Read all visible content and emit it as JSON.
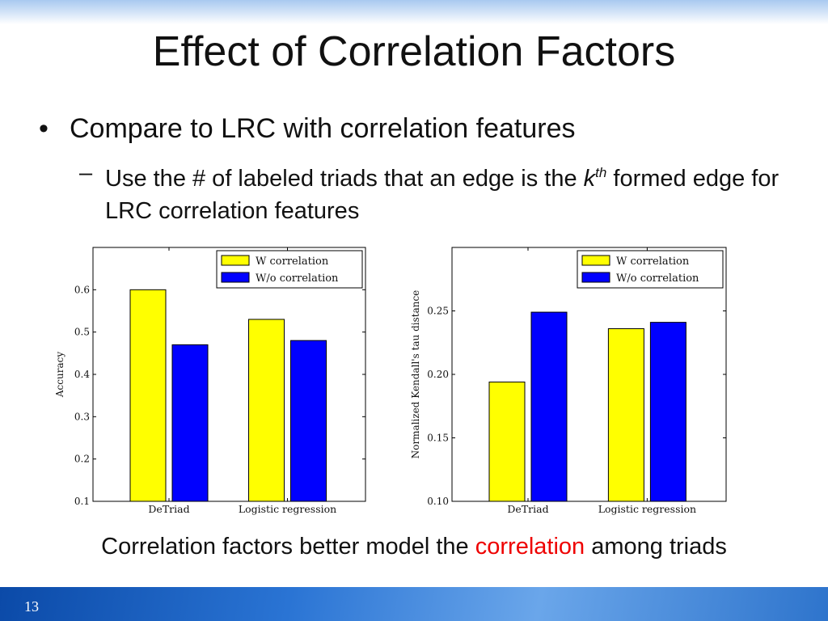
{
  "slide": {
    "title": "Effect of Correlation Factors",
    "bullet_symbol": "•",
    "bullet": "Compare to LRC with correlation features",
    "sub_dash": "–",
    "sub_bullet_pre": "Use the # of labeled triads that an edge is the ",
    "sub_bullet_k": "k",
    "sub_bullet_sup": "th",
    "sub_bullet_post": " formed edge for LRC correlation features",
    "conclusion_pre": "Correlation factors better model the ",
    "conclusion_highlight": "correlation",
    "conclusion_post": " among triads",
    "page_number": "13"
  },
  "colors": {
    "w_correlation": "#ffff00",
    "wo_correlation": "#0000ff",
    "highlight": "#ee0000"
  },
  "chart_data": [
    {
      "type": "bar",
      "title": "",
      "xlabel": "",
      "ylabel": "Accuracy",
      "categories": [
        "DeTriad",
        "Logistic regression"
      ],
      "series": [
        {
          "name": "W correlation",
          "values": [
            0.6,
            0.53
          ]
        },
        {
          "name": "W/o correlation",
          "values": [
            0.47,
            0.48
          ]
        }
      ],
      "ylim": [
        0.1,
        0.7
      ],
      "yticks": [
        0.1,
        0.2,
        0.3,
        0.4,
        0.5,
        0.6
      ],
      "ytick_labels": [
        "0.1",
        "0.2",
        "0.3",
        "0.4",
        "0.5",
        "0.6"
      ],
      "legend": "top-right"
    },
    {
      "type": "bar",
      "title": "",
      "xlabel": "",
      "ylabel": "Normalized Kendall's tau distance",
      "categories": [
        "DeTriad",
        "Logistic regression"
      ],
      "series": [
        {
          "name": "W correlation",
          "values": [
            0.194,
            0.236
          ]
        },
        {
          "name": "W/o correlation",
          "values": [
            0.249,
            0.241
          ]
        }
      ],
      "ylim": [
        0.1,
        0.3
      ],
      "yticks": [
        0.1,
        0.15,
        0.2,
        0.25
      ],
      "ytick_labels": [
        "0.10",
        "0.15",
        "0.20",
        "0.25"
      ],
      "legend": "top-right"
    }
  ]
}
